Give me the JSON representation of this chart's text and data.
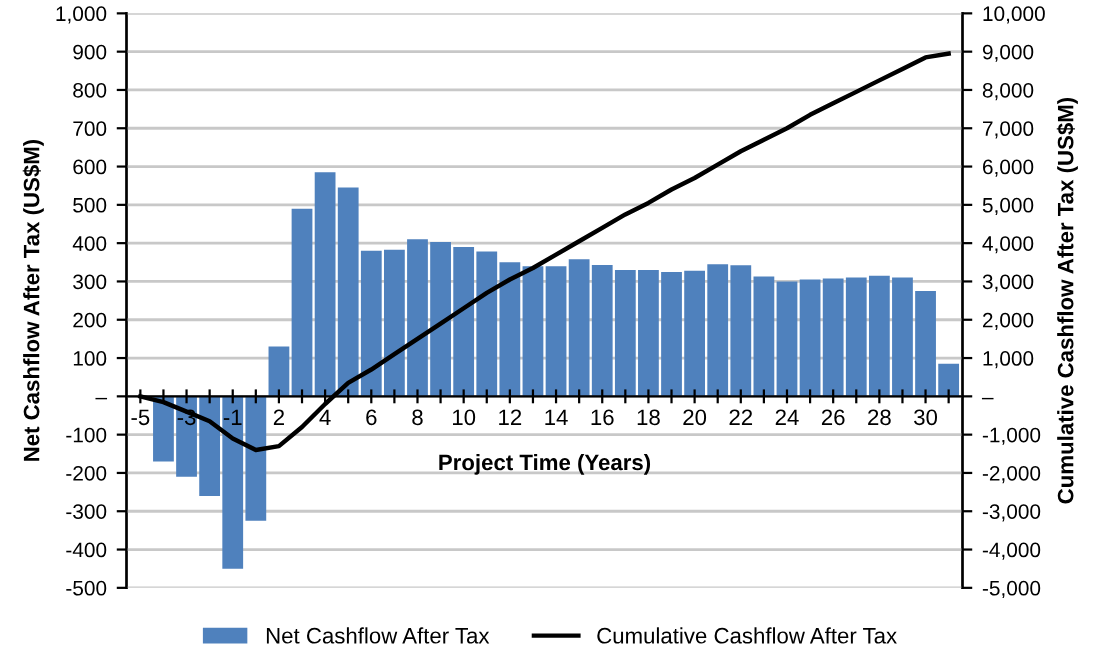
{
  "chart_data": {
    "type": "bar",
    "xlabel": "Project Time (Years)",
    "ylabel": "Net Cashflow After Tax (US$M)",
    "y2label": "Cumulative Cashflow After Tax (US$M)",
    "categories": [
      "-5",
      null,
      "-3",
      null,
      "-1",
      null,
      "2",
      null,
      "4",
      null,
      "6",
      null,
      "8",
      null,
      "10",
      null,
      "12",
      null,
      "14",
      null,
      "16",
      null,
      "18",
      null,
      "20",
      null,
      "22",
      null,
      "24",
      null,
      "26",
      null,
      "28",
      null,
      "30",
      null
    ],
    "series": [
      {
        "name": "Net Cashflow After Tax",
        "color": "#4f81bd",
        "values": [
          0,
          -170,
          -210,
          -260,
          -450,
          -325,
          130,
          490,
          585,
          545,
          380,
          383,
          410,
          403,
          390,
          378,
          350,
          340,
          340,
          358,
          343,
          330,
          330,
          325,
          328,
          345,
          342,
          313,
          300,
          305,
          308,
          310,
          315,
          310,
          275,
          85
        ]
      },
      {
        "name": "Cumulative Cashflow After Tax",
        "type": "line",
        "axis": "y2",
        "color": "#000000",
        "values": [
          0,
          -150,
          -400,
          -650,
          -1100,
          -1400,
          -1300,
          -800,
          -200,
          350,
          700,
          1100,
          1500,
          1900,
          2300,
          2700,
          3050,
          3350,
          3700,
          4050,
          4400,
          4750,
          5050,
          5400,
          5700,
          6050,
          6400,
          6700,
          7000,
          7350,
          7650,
          7950,
          8250,
          8550,
          8850,
          8950
        ]
      }
    ],
    "ylim": [
      -500,
      1000
    ],
    "yticks": [
      -500,
      -400,
      -300,
      -200,
      -100,
      {
        "value": 0,
        "label": "–"
      },
      100,
      200,
      300,
      400,
      500,
      600,
      700,
      800,
      900,
      {
        "value": 1000,
        "label": "1,000"
      }
    ],
    "y2lim": [
      -5000,
      10000
    ],
    "y2ticks": [
      {
        "value": -5000,
        "label": "-5,000"
      },
      {
        "value": -4000,
        "label": "-4,000"
      },
      {
        "value": -3000,
        "label": "-3,000"
      },
      {
        "value": -2000,
        "label": "-2,000"
      },
      {
        "value": -1000,
        "label": "-1,000"
      },
      {
        "value": 0,
        "label": "–"
      },
      {
        "value": 1000,
        "label": "1,000"
      },
      {
        "value": 2000,
        "label": "2,000"
      },
      {
        "value": 3000,
        "label": "3,000"
      },
      {
        "value": 4000,
        "label": "4,000"
      },
      {
        "value": 5000,
        "label": "5,000"
      },
      {
        "value": 6000,
        "label": "6,000"
      },
      {
        "value": 7000,
        "label": "7,000"
      },
      {
        "value": 8000,
        "label": "8,000"
      },
      {
        "value": 9000,
        "label": "9,000"
      },
      {
        "value": 10000,
        "label": "10,000"
      }
    ],
    "grid": "y",
    "legend": "bottom",
    "marker": "none",
    "line_style": "solid"
  }
}
